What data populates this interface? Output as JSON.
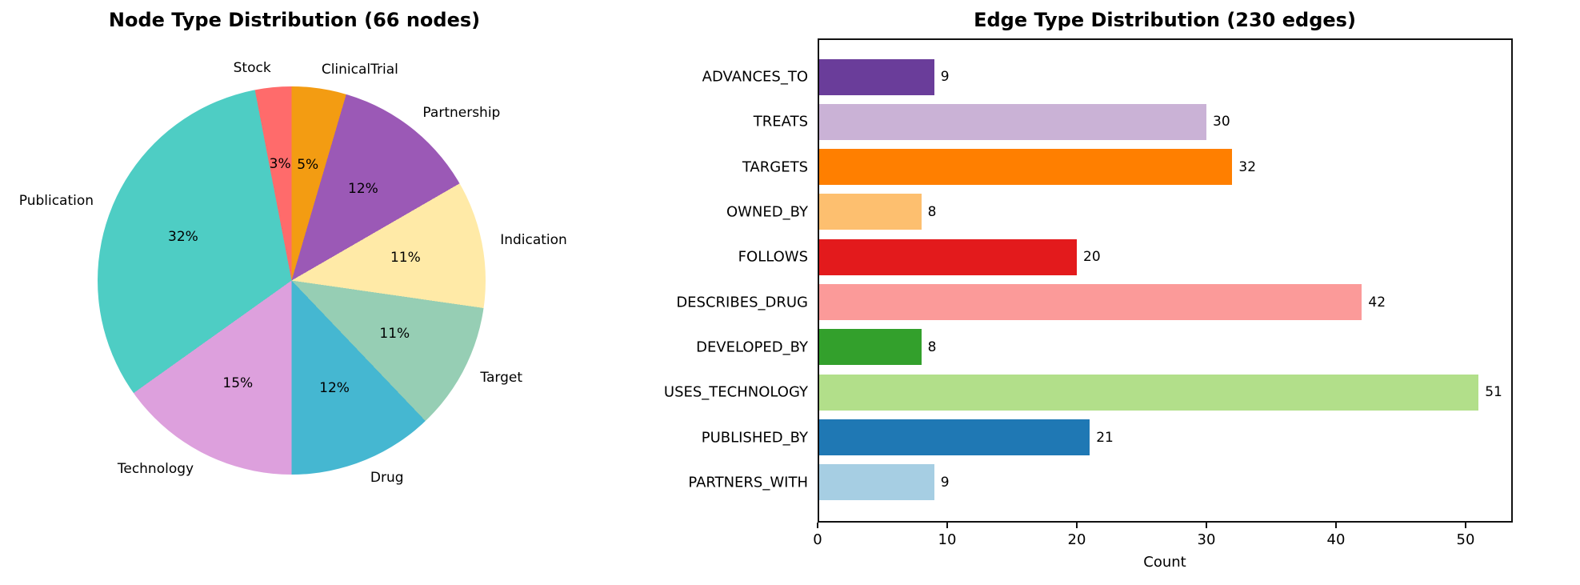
{
  "figure": {
    "background": "#ffffff"
  },
  "pie_chart": {
    "title": "Node Type Distribution (66 nodes)",
    "slices": [
      {
        "label": "ClinicalTrial",
        "pct_label": "5%",
        "color": "#F39C12"
      },
      {
        "label": "Partnership",
        "pct_label": "12%",
        "color": "#9B59B6"
      },
      {
        "label": "Indication",
        "pct_label": "11%",
        "color": "#FFEAA7"
      },
      {
        "label": "Target",
        "pct_label": "11%",
        "color": "#96CEB4"
      },
      {
        "label": "Drug",
        "pct_label": "12%",
        "color": "#45B7D1"
      },
      {
        "label": "Technology",
        "pct_label": "15%",
        "color": "#DDA0DD"
      },
      {
        "label": "Publication",
        "pct_label": "32%",
        "color": "#4ECDC4"
      },
      {
        "label": "Stock",
        "pct_label": "3%",
        "color": "#FF6B6B"
      }
    ]
  },
  "bar_chart": {
    "title": "Edge Type Distribution (230 edges)",
    "xlabel": "Count",
    "x_ticks": [
      "0",
      "10",
      "20",
      "30",
      "40",
      "50"
    ],
    "bars": [
      {
        "label": "ADVANCES_TO",
        "value": 9,
        "value_label": "9",
        "color": "#6A3D9A"
      },
      {
        "label": "TREATS",
        "value": 30,
        "value_label": "30",
        "color": "#CAB2D6"
      },
      {
        "label": "TARGETS",
        "value": 32,
        "value_label": "32",
        "color": "#FF7F00"
      },
      {
        "label": "OWNED_BY",
        "value": 8,
        "value_label": "8",
        "color": "#FDBF6F"
      },
      {
        "label": "FOLLOWS",
        "value": 20,
        "value_label": "20",
        "color": "#E31A1C"
      },
      {
        "label": "DESCRIBES_DRUG",
        "value": 42,
        "value_label": "42",
        "color": "#FB9A99"
      },
      {
        "label": "DEVELOPED_BY",
        "value": 8,
        "value_label": "8",
        "color": "#33A02C"
      },
      {
        "label": "USES_TECHNOLOGY",
        "value": 51,
        "value_label": "51",
        "color": "#B2DF8A"
      },
      {
        "label": "PUBLISHED_BY",
        "value": 21,
        "value_label": "21",
        "color": "#1F78B4"
      },
      {
        "label": "PARTNERS_WITH",
        "value": 9,
        "value_label": "9",
        "color": "#A6CEE3"
      }
    ]
  },
  "chart_data": [
    {
      "type": "pie",
      "title": "Node Type Distribution (66 nodes)",
      "categories": [
        "ClinicalTrial",
        "Partnership",
        "Indication",
        "Target",
        "Drug",
        "Technology",
        "Publication",
        "Stock"
      ],
      "values_pct": [
        5,
        12,
        11,
        11,
        12,
        15,
        32,
        3
      ],
      "direction": "clockwise",
      "start": "top",
      "colors": [
        "#F39C12",
        "#9B59B6",
        "#FFEAA7",
        "#96CEB4",
        "#45B7D1",
        "#DDA0DD",
        "#4ECDC4",
        "#FF6B6B"
      ],
      "legend_position": "none"
    },
    {
      "type": "bar",
      "orientation": "horizontal",
      "title": "Edge Type Distribution (230 edges)",
      "categories": [
        "ADVANCES_TO",
        "TREATS",
        "TARGETS",
        "OWNED_BY",
        "FOLLOWS",
        "DESCRIBES_DRUG",
        "DEVELOPED_BY",
        "USES_TECHNOLOGY",
        "PUBLISHED_BY",
        "PARTNERS_WITH"
      ],
      "values": [
        9,
        30,
        32,
        8,
        20,
        42,
        8,
        51,
        21,
        9
      ],
      "xlabel": "Count",
      "ylabel": "",
      "xlim": [
        0,
        53.6
      ],
      "x_ticks": [
        0,
        10,
        20,
        30,
        40,
        50
      ],
      "grid": false,
      "colors": [
        "#6A3D9A",
        "#CAB2D6",
        "#FF7F00",
        "#FDBF6F",
        "#E31A1C",
        "#FB9A99",
        "#33A02C",
        "#B2DF8A",
        "#1F78B4",
        "#A6CEE3"
      ],
      "legend_position": "none"
    }
  ]
}
